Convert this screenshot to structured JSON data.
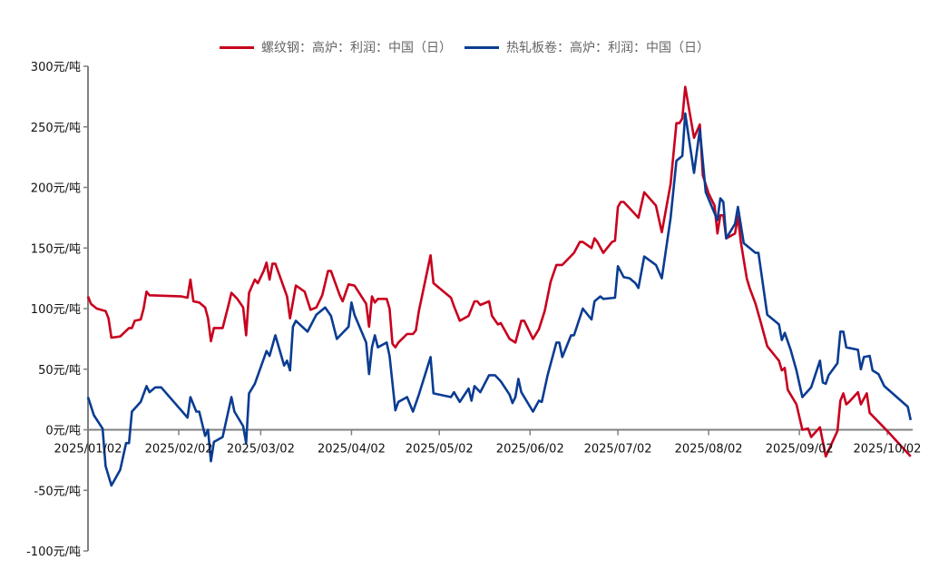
{
  "chart_data": {
    "type": "line",
    "title": "",
    "xlabel": "",
    "ylabel": "",
    "x_start": "2025/01/02",
    "x_unit": "days since 2025/01/02",
    "ylim": [
      -100,
      300
    ],
    "xlim": [
      0,
      282
    ],
    "grid": false,
    "legend_position": "top-center",
    "y_ticks": [
      {
        "value": 300,
        "label": "300元/吨"
      },
      {
        "value": 250,
        "label": "250元/吨"
      },
      {
        "value": 200,
        "label": "200元/吨"
      },
      {
        "value": 150,
        "label": "150元/吨"
      },
      {
        "value": 100,
        "label": "100元/吨"
      },
      {
        "value": 50,
        "label": "50元/吨"
      },
      {
        "value": 0,
        "label": "0元/吨"
      },
      {
        "value": -50,
        "label": "-50元/吨"
      },
      {
        "value": -100,
        "label": "-100元/吨"
      }
    ],
    "x_ticks": [
      {
        "value": 0,
        "label": "2025/01/02"
      },
      {
        "value": 31,
        "label": "2025/02/02"
      },
      {
        "value": 59,
        "label": "2025/03/02"
      },
      {
        "value": 90,
        "label": "2025/04/02"
      },
      {
        "value": 120,
        "label": "2025/05/02"
      },
      {
        "value": 151,
        "label": "2025/06/02"
      },
      {
        "value": 181,
        "label": "2025/07/02"
      },
      {
        "value": 212,
        "label": "2025/08/02"
      },
      {
        "value": 243,
        "label": "2025/09/02"
      },
      {
        "value": 273,
        "label": "2025/10/02"
      }
    ],
    "series": [
      {
        "name": "螺纹钢：高炉：利润：中国（日）",
        "color": "#c8001e",
        "x": [
          0,
          1,
          3,
          6,
          7,
          8,
          11,
          14,
          15,
          16,
          18,
          19,
          20,
          21,
          32,
          34,
          35,
          36,
          38,
          40,
          41,
          42,
          43,
          46,
          48,
          49,
          51,
          53,
          54,
          55,
          57,
          58,
          60,
          61,
          62,
          63,
          64,
          68,
          69,
          71,
          74,
          76,
          78,
          80,
          82,
          83,
          86,
          87,
          89,
          91,
          95,
          96,
          97,
          98,
          99,
          102,
          103,
          104,
          105,
          106,
          109,
          111,
          112,
          113,
          117,
          118,
          124,
          125,
          127,
          130,
          132,
          133,
          134,
          137,
          138,
          140,
          141,
          144,
          146,
          148,
          149,
          152,
          154,
          156,
          158,
          160,
          162,
          166,
          168,
          169,
          172,
          173,
          174,
          176,
          179,
          180,
          181,
          182,
          183,
          188,
          190,
          194,
          196,
          199,
          201,
          202,
          203,
          204,
          207,
          209,
          210,
          212,
          214,
          215,
          216,
          217,
          218,
          221,
          222,
          223,
          225,
          226,
          228,
          230,
          232,
          236,
          237,
          238,
          239,
          242,
          244,
          246,
          247,
          250,
          252,
          256,
          257,
          258,
          259,
          260,
          263,
          264,
          266,
          267,
          273,
          281
        ],
        "y": [
          110,
          104,
          100,
          98,
          92,
          76,
          77,
          84,
          84,
          90,
          91,
          100,
          114,
          111,
          110,
          109,
          124,
          106,
          105,
          101,
          92,
          73,
          84,
          84,
          103,
          113,
          108,
          101,
          78,
          113,
          124,
          121,
          131,
          138,
          124,
          137,
          137,
          110,
          92,
          119,
          114,
          99,
          101,
          111,
          131,
          131,
          111,
          106,
          120,
          119,
          104,
          85,
          110,
          105,
          108,
          108,
          100,
          71,
          68,
          72,
          79,
          79,
          82,
          98,
          144,
          121,
          109,
          102,
          90,
          94,
          106,
          106,
          103,
          106,
          94,
          87,
          88,
          75,
          72,
          90,
          90,
          75,
          83,
          98,
          122,
          136,
          136,
          146,
          155,
          155,
          150,
          158,
          155,
          146,
          155,
          156,
          184,
          188,
          188,
          175,
          196,
          185,
          163,
          203,
          253,
          253,
          257,
          283,
          241,
          252,
          210,
          195,
          185,
          162,
          177,
          177,
          158,
          162,
          176,
          155,
          125,
          117,
          104,
          87,
          69,
          57,
          49,
          51,
          33,
          21,
          0,
          1,
          -6,
          2,
          -22,
          -1,
          24,
          30,
          21,
          23,
          31,
          21,
          30,
          14,
          -1,
          -22
        ]
      },
      {
        "name": "热轧板卷：高炉：利润：中国（日）",
        "color": "#0a3c92",
        "x": [
          0,
          2,
          5,
          6,
          8,
          11,
          13,
          14,
          15,
          18,
          20,
          21,
          23,
          25,
          34,
          35,
          37,
          38,
          40,
          41,
          42,
          43,
          46,
          49,
          50,
          53,
          54,
          55,
          57,
          61,
          62,
          64,
          67,
          68,
          69,
          70,
          71,
          75,
          78,
          81,
          83,
          85,
          89,
          90,
          91,
          95,
          96,
          97,
          98,
          99,
          102,
          103,
          105,
          106,
          109,
          111,
          113,
          117,
          118,
          124,
          125,
          127,
          130,
          131,
          132,
          134,
          137,
          139,
          141,
          144,
          145,
          146,
          147,
          148,
          152,
          154,
          155,
          157,
          160,
          161,
          162,
          165,
          166,
          169,
          172,
          173,
          175,
          176,
          180,
          181,
          183,
          185,
          187,
          188,
          190,
          194,
          196,
          199,
          201,
          203,
          204,
          207,
          209,
          211,
          215,
          216,
          217,
          218,
          221,
          222,
          224,
          228,
          229,
          232,
          236,
          237,
          238,
          240,
          242,
          244,
          247,
          250,
          251,
          252,
          253,
          256,
          257,
          258,
          259,
          263,
          264,
          265,
          267,
          268,
          270,
          272,
          280,
          281
        ],
        "y": [
          27,
          12,
          1,
          -30,
          -46,
          -33,
          -11,
          -11,
          15,
          23,
          36,
          31,
          35,
          35,
          10,
          27,
          15,
          15,
          -5,
          0,
          -26,
          -10,
          -6,
          27,
          15,
          3,
          -11,
          30,
          38,
          65,
          61,
          78,
          53,
          57,
          49,
          85,
          90,
          81,
          95,
          101,
          94,
          75,
          85,
          105,
          95,
          72,
          46,
          68,
          78,
          68,
          72,
          61,
          16,
          23,
          27,
          15,
          29,
          60,
          30,
          27,
          31,
          23,
          34,
          24,
          36,
          31,
          45,
          45,
          40,
          29,
          22,
          27,
          42,
          31,
          15,
          24,
          23,
          45,
          72,
          72,
          60,
          78,
          78,
          100,
          91,
          106,
          110,
          108,
          109,
          135,
          126,
          125,
          121,
          117,
          143,
          136,
          125,
          175,
          222,
          226,
          261,
          212,
          248,
          196,
          173,
          191,
          188,
          158,
          170,
          184,
          154,
          146,
          146,
          95,
          87,
          74,
          80,
          66,
          49,
          27,
          35,
          57,
          39,
          38,
          45,
          55,
          81,
          81,
          68,
          66,
          50,
          60,
          61,
          49,
          46,
          36,
          19,
          8
        ]
      }
    ]
  }
}
